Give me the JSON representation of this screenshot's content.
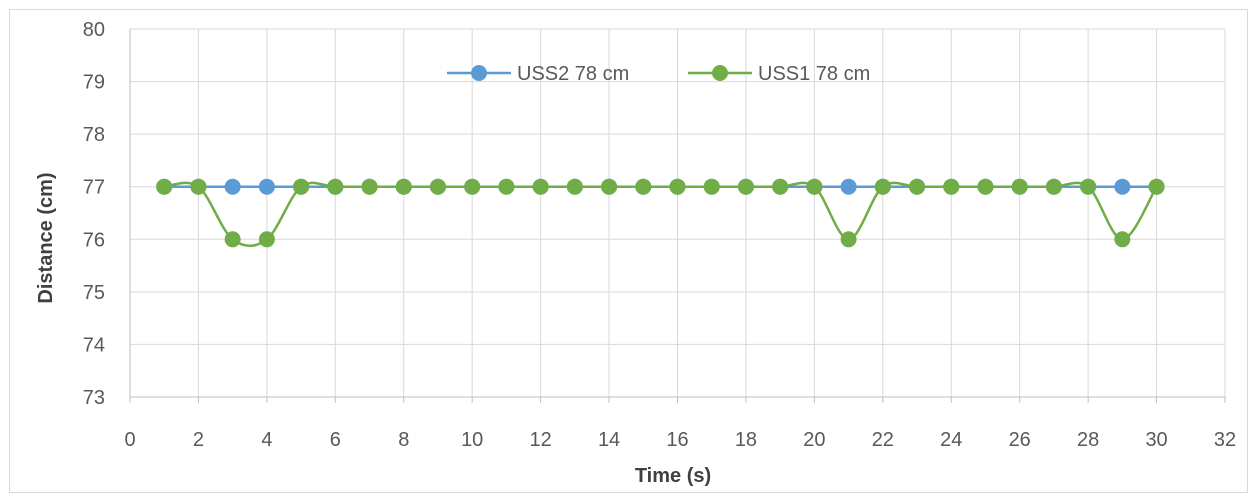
{
  "chart_data": {
    "type": "line",
    "title": "",
    "xlabel": "Time (s)",
    "ylabel": "Distance (cm)",
    "xlim": [
      0,
      32
    ],
    "ylim": [
      73,
      80
    ],
    "xticks": [
      0,
      2,
      4,
      6,
      8,
      10,
      12,
      14,
      16,
      18,
      20,
      22,
      24,
      26,
      28,
      30,
      32
    ],
    "yticks": [
      73,
      74,
      75,
      76,
      77,
      78,
      79,
      80
    ],
    "grid": true,
    "legend_position": "top-center",
    "x": [
      1,
      2,
      3,
      4,
      5,
      6,
      7,
      8,
      9,
      10,
      11,
      12,
      13,
      14,
      15,
      16,
      17,
      18,
      19,
      20,
      21,
      22,
      23,
      24,
      25,
      26,
      27,
      28,
      29,
      30
    ],
    "series": [
      {
        "name": "USS2 78 cm",
        "color": "#5b9bd5",
        "smooth": false,
        "values": [
          77,
          77,
          77,
          77,
          77,
          77,
          77,
          77,
          77,
          77,
          77,
          77,
          77,
          77,
          77,
          77,
          77,
          77,
          77,
          77,
          77,
          77,
          77,
          77,
          77,
          77,
          77,
          77,
          77,
          77
        ]
      },
      {
        "name": "USS1 78 cm",
        "color": "#70ad47",
        "smooth": true,
        "values": [
          77,
          77,
          76,
          76,
          77,
          77,
          77,
          77,
          77,
          77,
          77,
          77,
          77,
          77,
          77,
          77,
          77,
          77,
          77,
          77,
          76,
          77,
          77,
          77,
          77,
          77,
          77,
          77,
          76,
          77
        ]
      }
    ]
  }
}
